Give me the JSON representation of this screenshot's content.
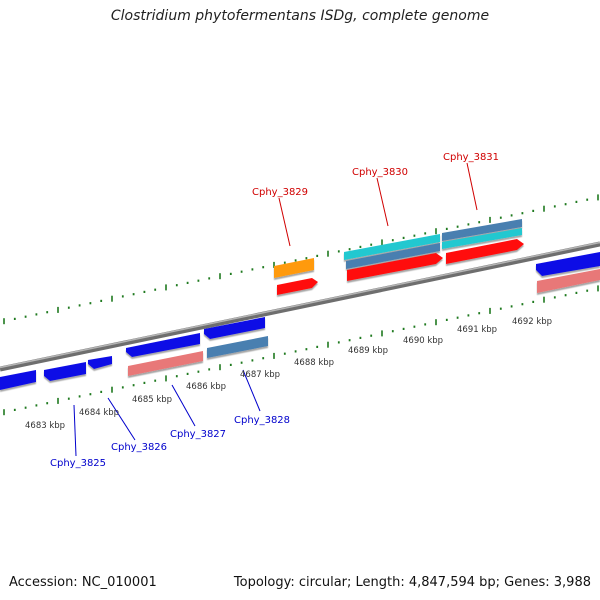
{
  "title": "Clostridium phytofermentans ISDg, complete genome",
  "footer": {
    "accession": "Accession: NC_010001",
    "summary": "Topology: circular; Length: 4,847,594 bp; Genes: 3,988"
  },
  "colors": {
    "backbone": "#8a8a8a",
    "tick_major": "#2e8b2e",
    "tick_minor": "#1f7a1f",
    "top_label": "#d00000",
    "bottom_label": "#0000cc",
    "blue_gene": "#1010e6",
    "red_gene": "#ff1010",
    "pink_gene": "#e87878",
    "steel_gene": "#4a7fb0",
    "cyan_gene": "#20c8d0",
    "orange_gene": "#ff9a10"
  },
  "kbp_labels": [
    "4683 kbp",
    "4684 kbp",
    "4685 kbp",
    "4686 kbp",
    "4687 kbp",
    "4688 kbp",
    "4689 kbp",
    "4690 kbp",
    "4691 kbp",
    "4692 kbp"
  ],
  "top_gene_labels": [
    "Cphy_3829",
    "Cphy_3830",
    "Cphy_3831"
  ],
  "bottom_gene_labels": [
    "Cphy_3825",
    "Cphy_3826",
    "Cphy_3827",
    "Cphy_3828"
  ]
}
